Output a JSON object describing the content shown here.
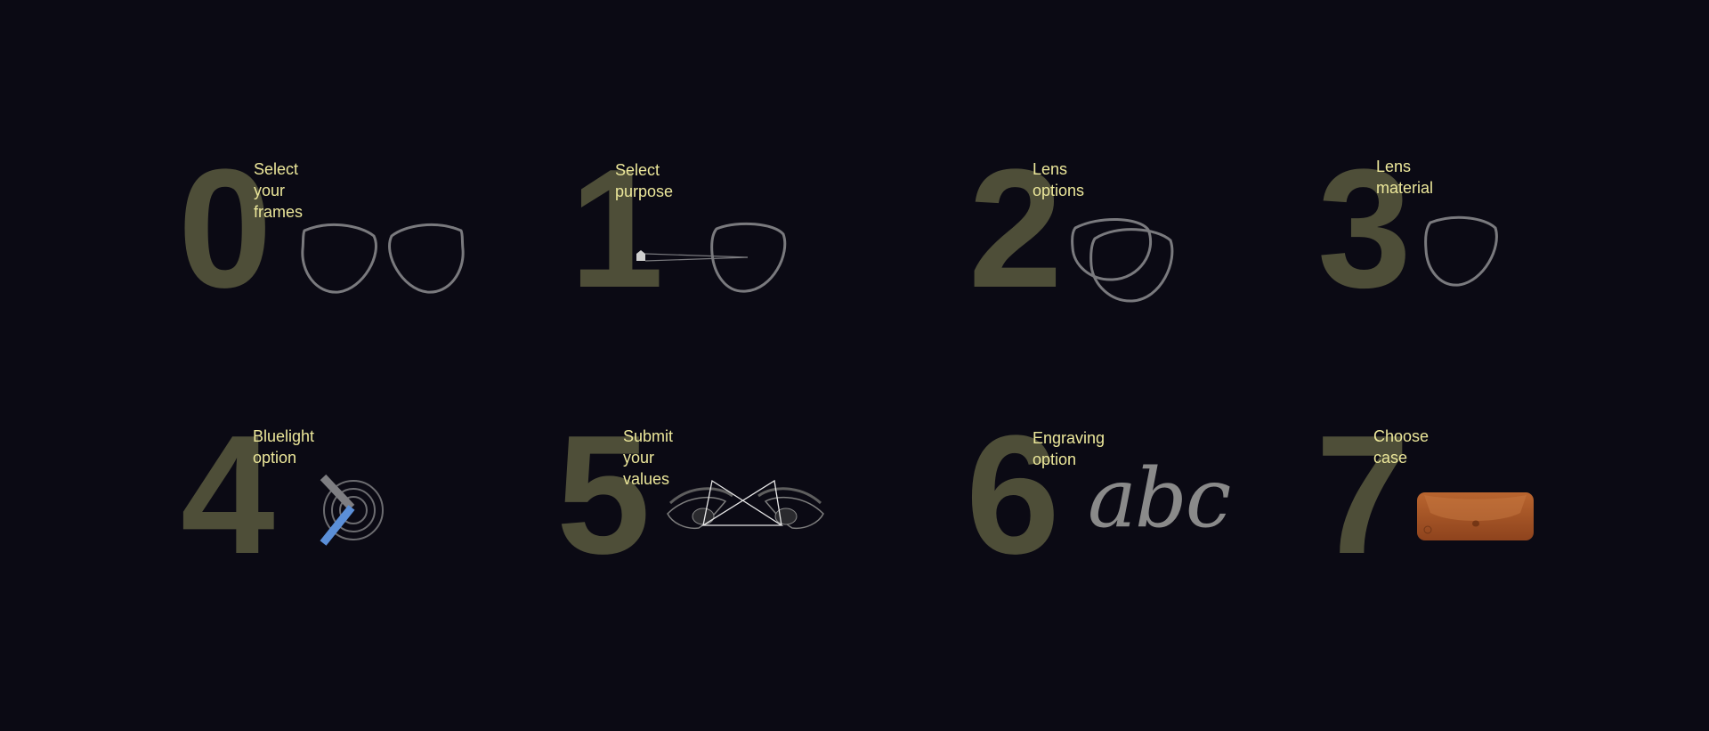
{
  "steps": [
    {
      "number": "0",
      "label": "Select your\nframes",
      "icon": "two-lenses-icon"
    },
    {
      "number": "1",
      "label": "Select\npurpose",
      "icon": "eye-sightline-lens-icon"
    },
    {
      "number": "2",
      "label": "Lens\noptions",
      "icon": "overlapping-lenses-icon"
    },
    {
      "number": "3",
      "label": "Lens\nmaterial",
      "icon": "single-lens-icon"
    },
    {
      "number": "4",
      "label": "Bluelight\noption",
      "icon": "bluelight-filter-icon"
    },
    {
      "number": "5",
      "label": "Submit your\nvalues",
      "icon": "eyes-measurement-icon"
    },
    {
      "number": "6",
      "label": "Engraving\noption",
      "icon": "engraving-text-icon",
      "engraving_sample": "abc"
    },
    {
      "number": "7",
      "label": "Choose\ncase",
      "icon": "glasses-case-icon"
    }
  ],
  "colors": {
    "background": "#0b0a14",
    "number": "#4e4e38",
    "label": "#ece79a",
    "line_art": "#7a7a7e",
    "bluelight": "#5b8fd8",
    "case_leather": "#a9562a"
  }
}
